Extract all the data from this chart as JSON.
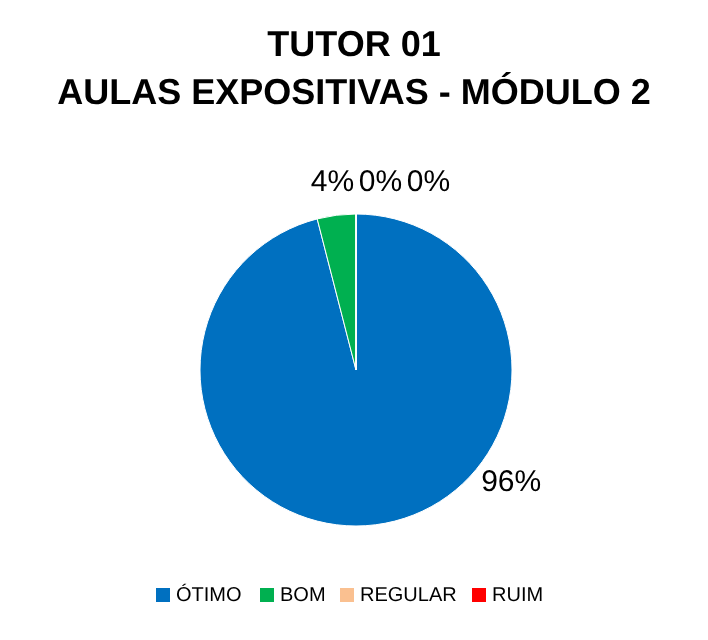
{
  "chart_data": {
    "type": "pie",
    "title": "TUTOR 01",
    "subtitle": "AULAS EXPOSITIVAS - MÓDULO 2",
    "categories": [
      "ÓTIMO",
      "BOM",
      "REGULAR",
      "RUIM"
    ],
    "values": [
      96,
      4,
      0,
      0
    ],
    "colors": [
      "#0070c0",
      "#00b050",
      "#fac090",
      "#ff0000"
    ],
    "value_labels": [
      "96%",
      "4%",
      "0%",
      "0%"
    ],
    "legend": "bottom"
  }
}
